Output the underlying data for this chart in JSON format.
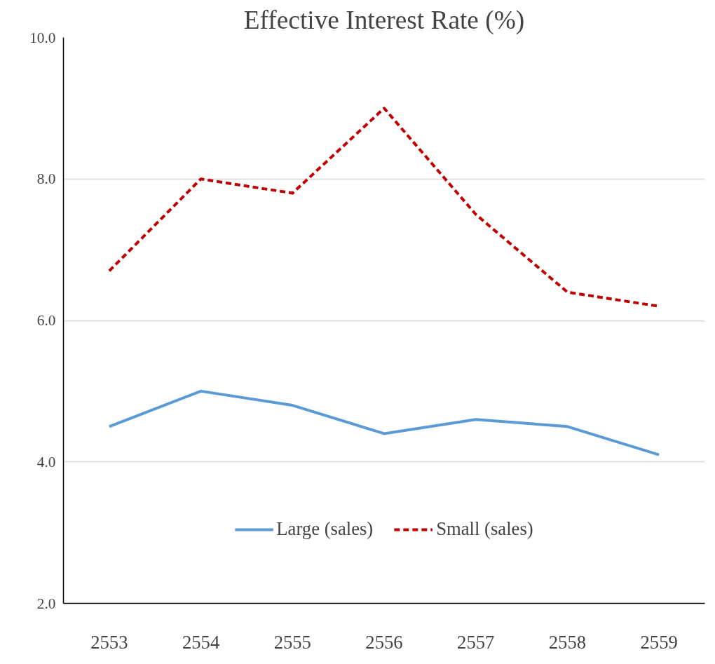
{
  "chart_data": {
    "type": "line",
    "title": "Effective Interest Rate (%)",
    "categories": [
      "2553",
      "2554",
      "2555",
      "2556",
      "2557",
      "2558",
      "2559"
    ],
    "series": [
      {
        "name": "Large (sales)",
        "color": "#5b9bd5",
        "line_style": "solid",
        "values": [
          4.5,
          5.0,
          4.8,
          4.4,
          4.6,
          4.5,
          4.1
        ]
      },
      {
        "name": "Small (sales)",
        "color": "#c00000",
        "line_style": "dashed",
        "values": [
          6.7,
          8.0,
          7.8,
          9.0,
          7.5,
          6.4,
          6.2
        ]
      }
    ],
    "ylim": [
      2,
      10
    ],
    "yticks": [
      {
        "value": 2,
        "label": "2.0"
      },
      {
        "value": 4,
        "label": "4.0"
      },
      {
        "value": 6,
        "label": "6.0"
      },
      {
        "value": 8,
        "label": "8.0"
      },
      {
        "value": 10,
        "label": "10.0"
      }
    ],
    "grid": "y",
    "legend": "bottom",
    "marker": "none"
  }
}
